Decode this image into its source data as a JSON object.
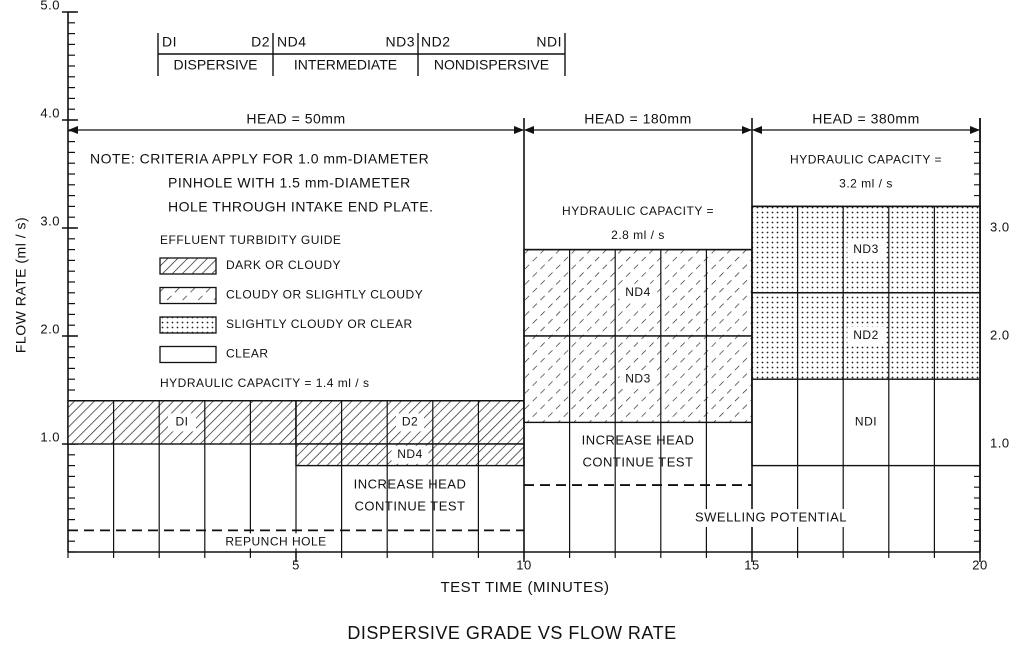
{
  "chart_data": {
    "type": "zone",
    "title": "DISPERSIVE GRADE VS FLOW RATE",
    "x_label": "TEST TIME (MINUTES)",
    "y_label": "FLOW RATE (ml / s)",
    "xlim": [
      0,
      20
    ],
    "ylim": [
      0,
      5
    ],
    "xticks": [
      5,
      10,
      15,
      20
    ],
    "yticks": [
      {
        "value": 1,
        "label": "1.0"
      },
      {
        "value": 2,
        "label": "2.0"
      },
      {
        "value": 3,
        "label": "3.0"
      },
      {
        "value": 4,
        "label": "4.0"
      },
      {
        "value": 5,
        "label": "5.0"
      }
    ],
    "y2lim": [
      0,
      5
    ],
    "y2ticks": [
      {
        "value": 1,
        "label": "1.0"
      },
      {
        "value": 2,
        "label": "2.0"
      },
      {
        "value": 3,
        "label": "3.0"
      }
    ],
    "x_minor_step": 1,
    "y_minor_step": 0.1,
    "grid": true,
    "heads": [
      {
        "label": "HEAD = 50mm",
        "x": [
          0,
          10
        ],
        "capacity": 1.4,
        "capacity_label": [
          "HYDRAULIC CAPACITY = 1.4 ml / s"
        ]
      },
      {
        "label": "HEAD = 180mm",
        "x": [
          10,
          15
        ],
        "capacity": 2.8,
        "capacity_label": [
          "HYDRAULIC CAPACITY =",
          "2.8 ml / s"
        ]
      },
      {
        "label": "HEAD = 380mm",
        "x": [
          15,
          20
        ],
        "capacity": 3.2,
        "capacity_label": [
          "HYDRAULIC CAPACITY =",
          "3.2 ml / s"
        ]
      }
    ],
    "zones": [
      {
        "name": "DI",
        "x": [
          0,
          5
        ],
        "y": [
          1.0,
          1.4
        ],
        "pattern": "dark"
      },
      {
        "name": "D2",
        "x": [
          5,
          10
        ],
        "y": [
          1.0,
          1.4
        ],
        "pattern": "dark"
      },
      {
        "name": "ND4",
        "x": [
          5,
          10
        ],
        "y": [
          0.8,
          1.0
        ],
        "pattern": "dark"
      },
      {
        "name": "ND4",
        "x": [
          10,
          15
        ],
        "y": [
          2.0,
          2.8
        ],
        "pattern": "cloudy"
      },
      {
        "name": "ND3",
        "x": [
          10,
          15
        ],
        "y": [
          1.2,
          2.0
        ],
        "pattern": "cloudy"
      },
      {
        "name": "ND3",
        "x": [
          15,
          20
        ],
        "y": [
          2.4,
          3.2
        ],
        "pattern": "dotted"
      },
      {
        "name": "ND2",
        "x": [
          15,
          20
        ],
        "y": [
          1.6,
          2.4
        ],
        "pattern": "dotted"
      },
      {
        "name": "NDI",
        "x": [
          15,
          20
        ],
        "y": [
          0.8,
          1.6
        ],
        "pattern": "clear"
      }
    ],
    "dashed_lines": [
      {
        "x": [
          0,
          10
        ],
        "y": 0.2,
        "label": "REPUNCH HOLE"
      },
      {
        "x": [
          10,
          15
        ],
        "y": 0.62
      }
    ],
    "annotations": [
      [
        "INCREASE HEAD",
        "CONTINUE TEST"
      ],
      [
        "INCREASE HEAD",
        "CONTINUE TEST"
      ],
      [
        "SWELLING POTENTIAL"
      ]
    ],
    "note": [
      "NOTE: CRITERIA APPLY FOR 1.0 mm-DIAMETER",
      "PINHOLE WITH 1.5 mm-DIAMETER",
      "HOLE THROUGH INTAKE END PLATE."
    ],
    "legend_title": "EFFLUENT TURBIDITY GUIDE",
    "legend": [
      {
        "label": "DARK OR CLOUDY",
        "pattern": "dark"
      },
      {
        "label": "CLOUDY OR SLIGHTLY CLOUDY",
        "pattern": "cloudy"
      },
      {
        "label": "SLIGHTLY CLOUDY OR CLEAR",
        "pattern": "dotted"
      },
      {
        "label": "CLEAR",
        "pattern": "clear"
      }
    ],
    "grades": [
      "DI",
      "D2",
      "ND4",
      "ND3",
      "ND2",
      "NDI"
    ],
    "grade_groups": [
      "DISPERSIVE",
      "INTERMEDIATE",
      "NONDISPERSIVE"
    ]
  }
}
